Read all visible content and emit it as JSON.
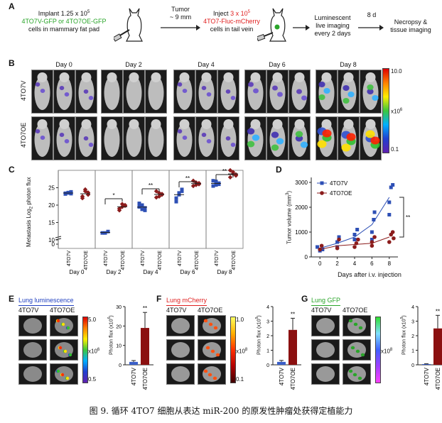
{
  "panelA": {
    "label": "A",
    "step1_l1": "Implant 1.25 x 10",
    "step1_sup": "5",
    "step1_l2": "4TO7V-GFP or 4TO7OE-GFP",
    "step1_l3": "cells in mammary fat pad",
    "arrow1_l1": "Tumor",
    "arrow1_l2": "~ 9 mm",
    "step2_l1a": "Inject ",
    "step2_l1b": "3 x 10",
    "step2_sup": "5",
    "step2_l2": "4TO7-Fluc-mCherry",
    "step2_l3": "cells in tail vein",
    "step3_l1": "Luminescent",
    "step3_l2": "live imaging",
    "step3_l3": "every 2 days",
    "arrow4": "8 d",
    "step4_l1": "Necropsy &",
    "step4_l2": "tissue imaging"
  },
  "panelB": {
    "label": "B",
    "days": [
      "Day 0",
      "Day 2",
      "Day 4",
      "Day 6",
      "Day 8"
    ],
    "rows": [
      "4TO7V",
      "4TO7OE"
    ],
    "scale_top": "10.0",
    "scale_unit": "x10",
    "scale_unit_sup": "6",
    "scale_bottom": "0.1"
  },
  "panelC": {
    "label": "C",
    "ylabel": "Metastasis Log",
    "ylabel_sub": "2",
    "ylabel_tail": " photon flux",
    "yticks": [
      "25",
      "20",
      "15",
      "10",
      "0"
    ],
    "groups": [
      "Day 0",
      "Day 2",
      "Day 4",
      "Day 6",
      "Day 8"
    ],
    "xcats": [
      "4TO7V",
      "4TO7OE"
    ],
    "sig": [
      "*",
      "**",
      "**",
      "**"
    ]
  },
  "panelD": {
    "label": "D",
    "ylabel": "Tumor volume (mm",
    "ylabel_sup": "3",
    "ylabel_tail": ")",
    "xlabel": "Days after i.v. injection",
    "yticks": [
      "3000",
      "2000",
      "1000",
      "0"
    ],
    "xticks": [
      "0",
      "2",
      "4",
      "6",
      "8"
    ],
    "legend": [
      "4TO7V",
      "4TO7OE"
    ],
    "sig": "**",
    "colors": {
      "v": "#2d4fb5",
      "oe": "#8b1c1c"
    }
  },
  "panelE": {
    "label": "E",
    "title": "Lung luminescence",
    "cols": [
      "4TO7V",
      "4TO7OE"
    ],
    "scale_top": "5.0",
    "scale_unit": "x10",
    "scale_unit_sup": "6",
    "scale_bottom": "0.5",
    "ylabel": "Photon flux (x10",
    "ylabel_sup": "6",
    "ylabel_tail": ")",
    "yticks": [
      "30",
      "20",
      "10",
      "0"
    ],
    "xcats": [
      "4TO7V",
      "4TO7OE"
    ],
    "sig": "**"
  },
  "panelF": {
    "label": "F",
    "title": "Lung mCherry",
    "cols": [
      "4TO7V",
      "4TO7OE"
    ],
    "scale_top": "1.0",
    "scale_unit": "x10",
    "scale_unit_sup": "8",
    "scale_bottom": "0.1",
    "ylabel": "Photon flux (x10",
    "ylabel_sup": "9",
    "ylabel_tail": ")",
    "yticks": [
      "4",
      "3",
      "2",
      "1",
      "0"
    ],
    "xcats": [
      "4TO7V",
      "4TO7OE"
    ],
    "sig": "**"
  },
  "panelG": {
    "label": "G",
    "title": "Lung GFP",
    "cols": [
      "4TO7V",
      "4TO7OE"
    ],
    "scale_unit": "x10",
    "scale_unit_sup": "8",
    "ylabel": "Photon flux (x10",
    "ylabel_sup": "9",
    "ylabel_tail": ")",
    "yticks": [
      "4",
      "3",
      "2",
      "1",
      "0"
    ],
    "xcats": [
      "4TO7V",
      "4TO7OE"
    ],
    "sig": "**"
  },
  "caption": "图 9. 循环 4TO7 细胞从表达 miR-200 的原发性肿瘤处获得定植能力",
  "chart_data": [
    {
      "type": "scatter",
      "panel": "C",
      "ylabel": "Metastasis Log2 photon flux",
      "categories": [
        "Day 0 4TO7V",
        "Day 0 4TO7OE",
        "Day 2 4TO7V",
        "Day 2 4TO7OE",
        "Day 4 4TO7V",
        "Day 4 4TO7OE",
        "Day 6 4TO7V",
        "Day 6 4TO7OE",
        "Day 8 4TO7V",
        "Day 8 4TO7OE"
      ],
      "ylim": [
        0,
        30
      ],
      "points": [
        [
          23.2,
          23.5,
          23.8,
          23.4,
          23.6,
          23.3
        ],
        [
          22.5,
          24.5,
          23.0,
          22.0,
          24.0,
          23.6
        ],
        [
          12,
          12,
          12.4
        ],
        [
          18.5,
          19.5,
          20.0,
          19.0,
          20.3,
          19.8
        ],
        [
          19.5,
          20.0,
          18.5,
          20.5,
          18.8,
          19.2
        ],
        [
          22.2,
          23.5,
          23.0,
          24.0,
          22.5,
          23.2
        ],
        [
          22.0,
          23.0,
          24.0,
          21.0,
          23.5,
          24.5
        ],
        [
          25.5,
          26.5,
          26.0,
          27.0,
          25.8,
          26.3
        ],
        [
          25.5,
          26.8,
          26.0,
          27.0,
          25.8,
          26.3
        ],
        [
          28.0,
          29.0,
          28.5,
          30.0,
          29.5,
          28.8
        ]
      ]
    },
    {
      "type": "scatter",
      "panel": "D",
      "xlabel": "Days after i.v. injection",
      "ylabel": "Tumor volume (mm3)",
      "xlim": [
        -1,
        9
      ],
      "ylim": [
        0,
        3200
      ],
      "series": [
        {
          "name": "4TO7V",
          "points": [
            [
              -0.3,
              400
            ],
            [
              0,
              250
            ],
            [
              0.3,
              300
            ],
            [
              2,
              400
            ],
            [
              2,
              600
            ],
            [
              2.2,
              800
            ],
            [
              4,
              700
            ],
            [
              4,
              900
            ],
            [
              4.3,
              1100
            ],
            [
              6,
              700
            ],
            [
              6,
              1000
            ],
            [
              6.2,
              1500
            ],
            [
              6.3,
              1800
            ],
            [
              8,
              1700
            ],
            [
              8,
              2200
            ],
            [
              8.2,
              2800
            ],
            [
              8.4,
              2900
            ]
          ],
          "trend": [
            [
              0,
              350
            ],
            [
              2,
              550
            ],
            [
              4,
              800
            ],
            [
              6,
              1300
            ],
            [
              8,
              2400
            ]
          ]
        },
        {
          "name": "4TO7OE",
          "points": [
            [
              0,
              300
            ],
            [
              0.2,
              450
            ],
            [
              2,
              350
            ],
            [
              2.2,
              700
            ],
            [
              4,
              400
            ],
            [
              4.2,
              550
            ],
            [
              4.4,
              700
            ],
            [
              6,
              450
            ],
            [
              6,
              600
            ],
            [
              6.3,
              800
            ],
            [
              8,
              600
            ],
            [
              8.2,
              900
            ],
            [
              8.4,
              1000
            ],
            [
              8.5,
              750
            ]
          ],
          "trend": [
            [
              0,
              300
            ],
            [
              2,
              450
            ],
            [
              4,
              500
            ],
            [
              6,
              550
            ],
            [
              8,
              800
            ]
          ]
        }
      ]
    },
    {
      "type": "bar",
      "panel": "E",
      "categories": [
        "4TO7V",
        "4TO7OE"
      ],
      "values": [
        1.5,
        19
      ],
      "errors": [
        0.7,
        8
      ],
      "ylim": [
        0,
        30
      ],
      "ylabel": "Photon flux (x10^6)"
    },
    {
      "type": "bar",
      "panel": "F",
      "categories": [
        "4TO7V",
        "4TO7OE"
      ],
      "values": [
        0.2,
        2.4
      ],
      "errors": [
        0.1,
        0.8
      ],
      "ylim": [
        0,
        4
      ],
      "ylabel": "Photon flux (x10^9)"
    },
    {
      "type": "bar",
      "panel": "G",
      "categories": [
        "4TO7V",
        "4TO7OE"
      ],
      "values": [
        0.05,
        2.5
      ],
      "errors": [
        0.02,
        0.9
      ],
      "ylim": [
        0,
        4
      ],
      "ylabel": "Photon flux (x10^9)"
    }
  ]
}
